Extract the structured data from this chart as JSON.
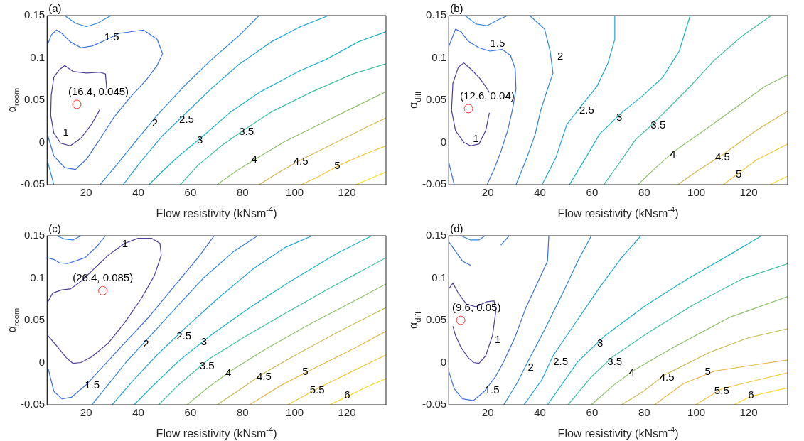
{
  "chart_data": [
    {
      "type": "line",
      "title": "(a)",
      "xlabel": "Flow resistivity (kNsm$^{-4}$)",
      "ylabel": "α$_{room}$",
      "xlim": [
        5,
        135
      ],
      "ylim": [
        -0.05,
        0.15
      ],
      "xticks": [
        20,
        40,
        60,
        80,
        100,
        120
      ],
      "yticks": [
        -0.05,
        0,
        0.05,
        0.1,
        0.15
      ],
      "grid": false,
      "legend": false,
      "marker": "none",
      "series": [
        {
          "name": "1",
          "color": "#4a3f9e",
          "x": [
            25.3,
            22.2,
            18.0,
            13.9,
            10.2,
            7.6,
            6.4,
            6.6,
            7.6,
            9.7,
            11.8,
            14.9,
            20.1,
            25.3,
            27.4,
            27.9
          ],
          "values": [
            0.039,
            0.022,
            0.005,
            -0.004,
            -0.001,
            0.011,
            0.032,
            0.056,
            0.077,
            0.086,
            0.091,
            0.084,
            0.082,
            0.083,
            0.081,
            0.063
          ]
        },
        {
          "name": "1.5",
          "color": "#3a6fe0",
          "x": [
            5.0,
            6.6,
            8.6,
            10.7,
            13.9,
            18.0,
            22.2,
            27.4,
            32.6,
            42.0,
            47.2,
            49.3,
            47.2,
            43.1,
            36.8,
            30.5,
            25.3,
            20.1,
            15.9,
            11.8,
            7.6,
            5.0
          ],
          "values": [
            0.114,
            0.127,
            0.133,
            0.129,
            0.119,
            0.112,
            0.114,
            0.121,
            0.129,
            0.133,
            0.122,
            0.105,
            0.091,
            0.074,
            0.053,
            0.029,
            0.004,
            -0.02,
            -0.032,
            -0.03,
            -0.016,
            0.011
          ]
        },
        {
          "name": "2",
          "color": "#2f86e0",
          "x": [
            11.8,
            15.9,
            20.1,
            24.3,
            29.5,
            null,
            25.3,
            31.6,
            38.9,
            47.2,
            57.7,
            68.1,
            78.5,
            86.3,
            null,
            5.0,
            7.6
          ],
          "values": [
            0.15,
            0.141,
            0.137,
            0.141,
            0.15,
            null,
            -0.05,
            -0.027,
            0.001,
            0.032,
            0.067,
            0.098,
            0.126,
            0.15,
            null,
            -0.02,
            -0.05
          ]
        },
        {
          "name": "2.5",
          "color": "#1ea5d4",
          "x": [
            34.2,
            40.9,
            49.3,
            57.7,
            68.1,
            78.5,
            91.0,
            101.5,
            112.9
          ],
          "values": [
            -0.05,
            -0.023,
            0.008,
            0.033,
            0.064,
            0.092,
            0.119,
            0.136,
            0.15
          ]
        },
        {
          "name": "3",
          "color": "#16b5c6",
          "x": [
            44.1,
            49.3,
            55.6,
            65.0,
            75.4,
            86.9,
            101.5,
            111.9,
            124.4,
            135
          ],
          "values": [
            -0.05,
            -0.034,
            -0.016,
            0.008,
            0.036,
            0.06,
            0.084,
            0.098,
            0.119,
            0.131
          ]
        },
        {
          "name": "3.5",
          "color": "#3cbfa0",
          "x": [
            56.1,
            62.9,
            72.3,
            80.6,
            91.0,
            106.7,
            122.3,
            135
          ],
          "values": [
            -0.05,
            -0.027,
            -0.003,
            0.015,
            0.036,
            0.06,
            0.081,
            0.093
          ]
        },
        {
          "name": "4",
          "color": "#8ec06a",
          "x": [
            70.2,
            77.5,
            84.8,
            96.2,
            111.9,
            124.4,
            135
          ],
          "values": [
            -0.05,
            -0.034,
            -0.02,
            0.001,
            0.025,
            0.044,
            0.06
          ]
        },
        {
          "name": "4.5",
          "color": "#d5b84a",
          "x": [
            86.3,
            93.1,
            101.5,
            113.9,
            127.5,
            135
          ],
          "values": [
            -0.05,
            -0.037,
            -0.022,
            -0.003,
            0.018,
            0.029
          ]
        },
        {
          "name": "5",
          "color": "#f5c63a",
          "x": [
            102.5,
            108.8,
            117.1,
            127.5,
            135
          ],
          "values": [
            -0.05,
            -0.041,
            -0.027,
            -0.013,
            -0.004
          ]
        },
        {
          "color": "#f9e22a",
          "x": [
            123.4,
            135
          ],
          "values": [
            -0.05,
            -0.035
          ]
        },
        {
          "type": "scatter",
          "marker": "circle",
          "color": "#ff3333",
          "x": [
            16.4
          ],
          "values": [
            0.045
          ]
        }
      ],
      "annotations": [
        {
          "text": "(16.4, 0.045)",
          "x": 16.4,
          "y": 0.045
        }
      ]
    },
    {
      "type": "line",
      "title": "(b)",
      "xlabel": "Flow resistivity (kNsm$^{-4}$)",
      "ylabel": "α$_{diff}$",
      "xlim": [
        5,
        135
      ],
      "ylim": [
        -0.05,
        0.15
      ],
      "xticks": [
        20,
        40,
        60,
        80,
        100,
        120
      ],
      "yticks": [
        -0.05,
        0,
        0.05,
        0.1,
        0.15
      ],
      "grid": false,
      "legend": false,
      "marker": "none",
      "series": [
        {
          "name": "1",
          "color": "#4a3f9e",
          "x": [
            20.6,
            19.2,
            16.6,
            13.4,
            10.8,
            7.6,
            6.1,
            6.6,
            8.7,
            10.8,
            13.4,
            16.6,
            19.2,
            20.6
          ],
          "values": [
            0.035,
            0.014,
            -0.002,
            -0.004,
            0.0,
            0.014,
            0.038,
            0.07,
            0.089,
            0.094,
            0.087,
            0.077,
            0.066,
            0.059
          ]
        },
        {
          "name": "1.5",
          "color": "#3a6fe0",
          "x": [
            5,
            7.6,
            9.7,
            12.4,
            16.6,
            20.8,
            25.5,
            28.7,
            30.5,
            30.8,
            29.4,
            27.6,
            25.0,
            22.4,
            19.7,
            null,
            5,
            7.1
          ],
          "values": [
            0.113,
            0.134,
            0.131,
            0.12,
            0.112,
            0.108,
            0.11,
            0.103,
            0.087,
            0.063,
            0.038,
            0.014,
            -0.011,
            -0.032,
            -0.05,
            null,
            -0.023,
            -0.05
          ]
        },
        {
          "name": "2",
          "color": "#2f86e0",
          "x": [
            11.3,
            15.5,
            19.7,
            23.9,
            27.6,
            null,
            36.1,
            41.8,
            43.9,
            45.0,
            42.9,
            40.3,
            38.2,
            35.0,
            30.8
          ],
          "values": [
            0.15,
            0.14,
            0.138,
            0.145,
            0.15,
            null,
            0.15,
            0.134,
            0.108,
            0.082,
            0.063,
            0.038,
            0.01,
            -0.018,
            -0.05
          ]
        },
        {
          "name": "2.5",
          "color": "#1ea5d4",
          "x": [
            40.8,
            46.1,
            50.3,
            55.5,
            61.8,
            66.1,
            68.7,
            68.7
          ],
          "values": [
            -0.05,
            -0.018,
            0.021,
            0.042,
            0.066,
            0.094,
            0.122,
            0.15
          ]
        },
        {
          "name": "3",
          "color": "#16b5c6",
          "x": [
            51.3,
            57.6,
            62.9,
            71.3,
            79.7,
            87.1,
            93.4,
            97.6
          ],
          "values": [
            -0.05,
            -0.018,
            0.01,
            0.035,
            0.056,
            0.077,
            0.108,
            0.15
          ]
        },
        {
          "name": "3.5",
          "color": "#3cbfa0",
          "x": [
            64.5,
            70.3,
            76.6,
            84.0,
            96.6,
            107.1,
            117.6,
            128.7
          ],
          "values": [
            -0.05,
            -0.025,
            0.003,
            0.024,
            0.063,
            0.098,
            0.126,
            0.15
          ]
        },
        {
          "name": "4",
          "color": "#8ec06a",
          "x": [
            77.6,
            84.0,
            91.3,
            102.9,
            115.5,
            126.1,
            135
          ],
          "values": [
            -0.05,
            -0.031,
            -0.011,
            0.014,
            0.042,
            0.066,
            0.08
          ]
        },
        {
          "name": "4.5",
          "color": "#d5b84a",
          "x": [
            92.9,
            99.7,
            110.3,
            122.9,
            135
          ],
          "values": [
            -0.05,
            -0.035,
            -0.014,
            0.014,
            0.037
          ]
        },
        {
          "name": "5",
          "color": "#f5c63a",
          "x": [
            110.3,
            115.5,
            122.9,
            135
          ],
          "values": [
            -0.05,
            -0.038,
            -0.021,
            -0.002
          ]
        },
        {
          "color": "#f9e22a",
          "x": [
            128.2,
            135
          ],
          "values": [
            -0.05,
            -0.04
          ]
        },
        {
          "type": "scatter",
          "marker": "circle",
          "color": "#ff3333",
          "x": [
            12.6
          ],
          "values": [
            0.04
          ]
        }
      ],
      "annotations": [
        {
          "text": "(12.6, 0.04)",
          "x": 12.6,
          "y": 0.04
        }
      ]
    },
    {
      "type": "line",
      "title": "(c)",
      "xlabel": "Flow resistivity (kNsm$^{-4}$)",
      "ylabel": "α$_{room}$",
      "xlim": [
        5,
        135
      ],
      "ylim": [
        -0.05,
        0.15
      ],
      "xticks": [
        20,
        40,
        60,
        80,
        100,
        120
      ],
      "yticks": [
        -0.05,
        0,
        0.05,
        0.1,
        0.15
      ],
      "grid": false,
      "legend": false,
      "marker": "none",
      "series": [
        {
          "name": "1",
          "color": "#4a3f9e",
          "x": [
            5,
            7.1,
            10.7,
            13.9,
            18.0,
            22.7,
            28.5,
            34.7,
            39.9,
            45.1,
            48.3,
            48.8,
            46.2,
            41.0,
            34.7,
            28.5,
            22.2,
            18.0,
            14.9,
            12.3,
            8.6,
            5
          ],
          "values": [
            0.07,
            0.082,
            0.086,
            0.087,
            0.096,
            0.11,
            0.127,
            0.141,
            0.147,
            0.147,
            0.141,
            0.127,
            0.103,
            0.075,
            0.047,
            0.023,
            0.007,
            0.0,
            -0.001,
            0.006,
            0.02,
            0.033
          ]
        },
        {
          "name": "1.5",
          "color": "#3a6fe0",
          "x": [
            5,
            7.6,
            9.7,
            12.8,
            19.6,
            24.3,
            27.4,
            null,
            5.5,
            7.6,
            10.7,
            14.4,
            20.1,
            26.4,
            34.7,
            44.1,
            54.5,
            62.9,
            69.1
          ],
          "values": [
            0.124,
            0.122,
            0.118,
            0.117,
            0.124,
            0.138,
            0.15,
            null,
            -0.008,
            -0.034,
            -0.043,
            -0.041,
            -0.026,
            -0.005,
            0.023,
            0.054,
            0.093,
            0.124,
            0.15
          ]
        },
        {
          "name": "2",
          "color": "#2f86e0",
          "x": [
            8.6,
            11.8,
            14.9,
            18.0,
            null,
            22.2,
            28.5,
            35.2,
            44.1,
            54.5,
            65.0,
            76.4,
            85.8
          ],
          "values": [
            0.15,
            0.146,
            0.145,
            0.15,
            null,
            -0.05,
            -0.026,
            0.0,
            0.03,
            0.065,
            0.1,
            0.131,
            0.15
          ]
        },
        {
          "name": "2.5",
          "color": "#1ea5d4",
          "x": [
            30.0,
            37.8,
            47.2,
            57.7,
            70.2,
            83.7,
            96.2,
            106.7
          ],
          "values": [
            -0.05,
            -0.022,
            0.009,
            0.04,
            0.075,
            0.11,
            0.136,
            0.15
          ]
        },
        {
          "name": "3",
          "color": "#16b5c6",
          "x": [
            38.4,
            45.1,
            55.6,
            68.1,
            82.7,
            98.3,
            116.1,
            129.6
          ],
          "values": [
            -0.05,
            -0.029,
            0.002,
            0.033,
            0.065,
            0.096,
            0.129,
            0.15
          ]
        },
        {
          "name": "3.5",
          "color": "#3cbfa0",
          "x": [
            47.8,
            55.6,
            67.0,
            80.6,
            96.2,
            114.0,
            135
          ],
          "values": [
            -0.05,
            -0.026,
            0.004,
            0.03,
            0.058,
            0.089,
            0.124
          ]
        },
        {
          "name": "4",
          "color": "#8ec06a",
          "x": [
            58.7,
            67.0,
            75.4,
            88.9,
            106.7,
            122.3,
            135
          ],
          "values": [
            -0.05,
            -0.029,
            -0.01,
            0.016,
            0.047,
            0.072,
            0.093
          ]
        },
        {
          "name": "4.5",
          "color": "#c8bc52",
          "x": [
            70.2,
            78.5,
            87.9,
            101.5,
            117.1,
            135
          ],
          "values": [
            -0.05,
            -0.033,
            -0.013,
            0.011,
            0.037,
            0.065
          ]
        },
        {
          "name": "5",
          "color": "#e6b84a",
          "x": [
            82.7,
            94.7,
            106.7,
            122.3,
            135
          ],
          "values": [
            -0.05,
            -0.027,
            -0.008,
            0.016,
            0.037
          ]
        },
        {
          "name": "5.5",
          "color": "#f5c63a",
          "x": [
            97.3,
            109.8,
            122.3,
            135
          ],
          "values": [
            -0.05,
            -0.029,
            -0.01,
            0.009
          ]
        },
        {
          "name": "6",
          "color": "#f9d82a",
          "x": [
            113.4,
            120.2,
            127.5,
            135
          ],
          "values": [
            -0.05,
            -0.04,
            -0.029,
            -0.019
          ]
        },
        {
          "type": "scatter",
          "marker": "circle",
          "color": "#ff3333",
          "x": [
            26.4
          ],
          "values": [
            0.085
          ]
        }
      ],
      "annotations": [
        {
          "text": "(26.4, 0.085)",
          "x": 26.4,
          "y": 0.085
        }
      ]
    },
    {
      "type": "line",
      "title": "(d)",
      "xlabel": "Flow resistivity (kNsm$^{-4}$)",
      "ylabel": "α$_{diff}$",
      "xlim": [
        5,
        135
      ],
      "ylim": [
        -0.05,
        0.15
      ],
      "xticks": [
        20,
        40,
        60,
        80,
        100,
        120
      ],
      "yticks": [
        -0.05,
        0,
        0.05,
        0.1,
        0.15
      ],
      "grid": false,
      "legend": false,
      "marker": "none",
      "series": [
        {
          "name": "1",
          "color": "#4a3f9e",
          "x": [
            5,
            6.6,
            8.7,
            11.8,
            15.5,
            19.7,
            22.4,
            23.1,
            21.8,
            19.2,
            16.6,
            14.5,
            12.4,
            9.7,
            7.6,
            6.6
          ],
          "values": [
            0.087,
            0.094,
            0.082,
            0.069,
            0.066,
            0.072,
            0.073,
            0.061,
            0.032,
            0.008,
            -0.001,
            0.0,
            0.006,
            0.018,
            0.032,
            0.043
          ]
        },
        {
          "name": "1.5",
          "color": "#3a6fe0",
          "x": [
            5,
            7.1,
            10.3,
            13.4,
            null,
            25.0,
            28.2,
            null,
            5,
            7.1,
            10.3,
            14.5,
            18.7,
            22.9,
            26.1,
            30.3,
            34.5,
            38.7,
            42.9,
            43.4
          ],
          "values": [
            0.143,
            0.134,
            0.12,
            0.115,
            null,
            0.139,
            0.15,
            null,
            -0.01,
            -0.031,
            -0.043,
            -0.045,
            -0.034,
            -0.017,
            0.001,
            0.029,
            0.064,
            0.092,
            0.12,
            0.15
          ]
        },
        {
          "name": "2",
          "color": "#2f86e0",
          "x": [
            9.7,
            13.4,
            16.6,
            18.9,
            null,
            26.1,
            31.3,
            35.0,
            41.8,
            49.2,
            54.5,
            59.7
          ],
          "values": [
            0.15,
            0.145,
            0.145,
            0.15,
            null,
            -0.05,
            -0.024,
            -0.001,
            0.039,
            0.085,
            0.12,
            0.15
          ]
        },
        {
          "name": "2.5",
          "color": "#1ea5d4",
          "x": [
            33.9,
            40.8,
            45.0,
            53.4,
            62.9,
            71.3,
            78.7
          ],
          "values": [
            -0.05,
            -0.02,
            0.008,
            0.046,
            0.089,
            0.124,
            0.15
          ]
        },
        {
          "name": "3",
          "color": "#16b5c6",
          "x": [
            42.9,
            54.5,
            65.0,
            80.8,
            96.6,
            112.4,
            125.0
          ],
          "values": [
            -0.05,
            0.001,
            0.032,
            0.068,
            0.099,
            0.127,
            0.15
          ]
        },
        {
          "name": "3.5",
          "color": "#3cbfa0",
          "x": [
            50.8,
            59.7,
            67.6,
            81.8,
            98.7,
            117.6,
            135
          ],
          "values": [
            -0.05,
            -0.017,
            0.006,
            0.036,
            0.068,
            0.099,
            0.117
          ]
        },
        {
          "name": "4",
          "color": "#8ec06a",
          "x": [
            59.7,
            68.2,
            75.5,
            91.3,
            112.4,
            135
          ],
          "values": [
            -0.05,
            -0.027,
            -0.01,
            0.018,
            0.053,
            0.078
          ]
        },
        {
          "name": "4.5",
          "color": "#c8bc52",
          "x": [
            71.3,
            79.7,
            87.6,
            105.0,
            119.7,
            135
          ],
          "values": [
            -0.05,
            -0.034,
            -0.015,
            0.012,
            0.029,
            0.04
          ]
        },
        {
          "name": "5",
          "color": "#e6b84a",
          "x": [
            83.9,
            95.0,
            107.1,
            119.7,
            135
          ],
          "values": [
            -0.05,
            -0.025,
            -0.01,
            -0.004,
            0.003
          ]
        },
        {
          "name": "5.5",
          "color": "#f5c63a",
          "x": [
            99.7,
            109.7,
            122.9,
            135
          ],
          "values": [
            -0.05,
            -0.031,
            -0.021,
            -0.012
          ]
        },
        {
          "name": "6",
          "color": "#f9d82a",
          "x": [
            114.5,
            120.8,
            135
          ],
          "values": [
            -0.05,
            -0.04,
            -0.03
          ]
        },
        {
          "type": "scatter",
          "marker": "circle",
          "color": "#ff3333",
          "x": [
            9.6
          ],
          "values": [
            0.05
          ]
        }
      ],
      "annotations": [
        {
          "text": "(9.6, 0.05)",
          "x": 9.6,
          "y": 0.05
        }
      ]
    }
  ]
}
